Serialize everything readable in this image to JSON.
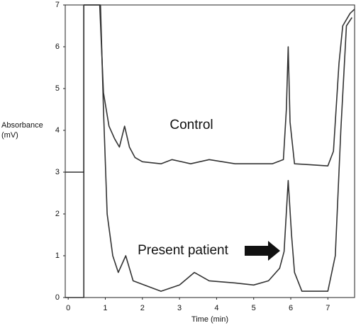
{
  "chart_data": {
    "type": "line",
    "y_label": [
      "Absorbance",
      "(mV)"
    ],
    "x_label": "Time (min)",
    "xlim": [
      -0.08,
      7.72
    ],
    "ylim": [
      0,
      7
    ],
    "xticks": [
      0,
      1,
      2,
      3,
      4,
      5,
      6,
      7
    ],
    "yticks": [
      0,
      1,
      2,
      3,
      4,
      5,
      6,
      7
    ],
    "annotations": [
      "Control",
      "Present patient"
    ],
    "series": [
      {
        "color": "#333333",
        "x": [
          -0.08,
          0.42,
          0.42,
          0.85,
          0.95,
          1.1,
          1.25,
          1.38,
          1.52,
          1.65,
          1.8,
          2.0,
          2.5,
          2.8,
          3.3,
          3.8,
          4.5,
          5.0,
          5.5,
          5.8,
          5.88,
          5.93,
          5.98,
          6.1,
          6.5,
          7.0,
          7.15,
          7.3,
          7.4,
          7.6,
          7.72
        ],
        "y": [
          3.0,
          3.0,
          7.0,
          7.0,
          4.9,
          4.1,
          3.8,
          3.6,
          4.1,
          3.6,
          3.35,
          3.25,
          3.2,
          3.3,
          3.2,
          3.3,
          3.2,
          3.2,
          3.2,
          3.3,
          4.5,
          6.0,
          4.2,
          3.2,
          3.18,
          3.15,
          3.5,
          5.6,
          6.5,
          6.8,
          6.9
        ]
      },
      {
        "color": "#333333",
        "x": [
          -0.08,
          0.42,
          0.42,
          0.87,
          0.95,
          1.05,
          1.2,
          1.35,
          1.55,
          1.75,
          2.2,
          2.5,
          3.0,
          3.4,
          3.8,
          4.5,
          5.0,
          5.4,
          5.7,
          5.82,
          5.93,
          6.02,
          6.1,
          6.3,
          7.0,
          7.2,
          7.35,
          7.5,
          7.65
        ],
        "y": [
          0.0,
          0.0,
          7.0,
          7.0,
          4.5,
          2.0,
          1.0,
          0.6,
          1.0,
          0.4,
          0.25,
          0.15,
          0.3,
          0.6,
          0.4,
          0.35,
          0.3,
          0.4,
          0.7,
          1.1,
          2.8,
          1.5,
          0.6,
          0.15,
          0.15,
          1.0,
          4.0,
          6.5,
          6.7
        ]
      }
    ]
  }
}
